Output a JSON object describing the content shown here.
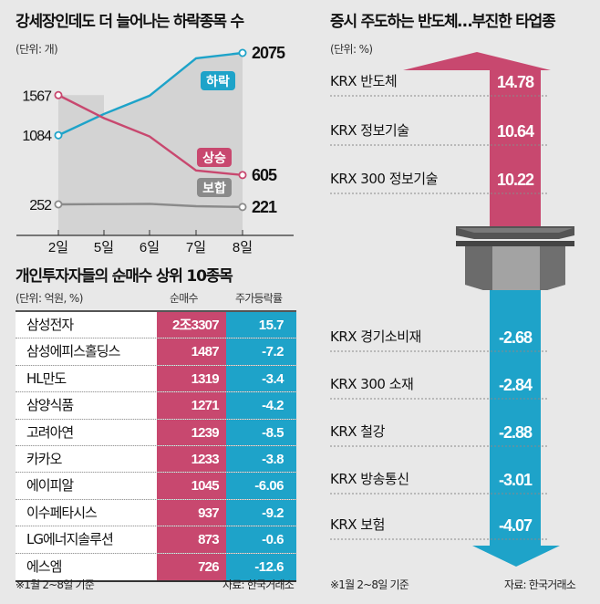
{
  "colors": {
    "background": "#e8e8e8",
    "decline": "#1ea3c9",
    "advance": "#c8486f",
    "unchanged": "#8a8a8a"
  },
  "left_top": {
    "title": "강세장인데도 더 늘어나는 하락종목 수",
    "unit": "(단위: 개)"
  },
  "table": {
    "title": "개인투자자들의 순매수 상위 10종목",
    "unit": "(단위: 억원, %)",
    "headers": [
      "순매수",
      "주가등락률"
    ],
    "rows": [
      {
        "name": "삼성전자",
        "net_buy": "2조3307",
        "change": "15.7"
      },
      {
        "name": "삼성에피스홀딩스",
        "net_buy": "1487",
        "change": "-7.2"
      },
      {
        "name": "HL만도",
        "net_buy": "1319",
        "change": "-3.4"
      },
      {
        "name": "삼양식품",
        "net_buy": "1271",
        "change": "-4.2"
      },
      {
        "name": "고려아연",
        "net_buy": "1239",
        "change": "-8.5"
      },
      {
        "name": "카카오",
        "net_buy": "1233",
        "change": "-3.8"
      },
      {
        "name": "에이피알",
        "net_buy": "1045",
        "change": "-6.06"
      },
      {
        "name": "이수페타시스",
        "net_buy": "937",
        "change": "-9.2"
      },
      {
        "name": "LG에너지솔루션",
        "net_buy": "873",
        "change": "-0.6"
      },
      {
        "name": "에스엠",
        "net_buy": "726",
        "change": "-12.6"
      }
    ],
    "footnote": "※1월 2~8일 기준",
    "source": "자료: 한국거래소"
  },
  "right": {
    "title": "증시 주도하는 반도체…부진한 타업종",
    "unit": "(단위: %)",
    "footnote": "※1월 2~8일 기준",
    "source": "자료: 한국거래소"
  },
  "chart_data": [
    {
      "type": "line",
      "title": "강세장인데도 더 늘어나는 하락종목 수",
      "subtitle": "(단위: 개)",
      "x": [
        "2일",
        "5일",
        "6일",
        "7일",
        "8일"
      ],
      "xlabel": "",
      "ylabel": "",
      "ylim": [
        0,
        2200
      ],
      "grid": false,
      "series": [
        {
          "name": "하락",
          "values": [
            1084,
            1340,
            1560,
            2010,
            2075
          ],
          "color": "#1ea3c9",
          "labeled_endpoints": [
            "1084",
            "2075"
          ]
        },
        {
          "name": "상승",
          "values": [
            1567,
            1290,
            1070,
            660,
            605
          ],
          "color": "#c8486f",
          "labeled_endpoints": [
            "1567",
            "605"
          ]
        },
        {
          "name": "보합",
          "values": [
            252,
            255,
            258,
            230,
            221
          ],
          "color": "#8a8a8a",
          "labeled_endpoints": [
            "252",
            "221"
          ]
        }
      ]
    },
    {
      "type": "bar",
      "title": "증시 주도하는 반도체…부진한 타업종",
      "subtitle": "(단위: %)",
      "categories": [
        "KRX 반도체",
        "KRX 정보기술",
        "KRX 300 정보기술",
        "KRX 경기소비재",
        "KRX 300 소재",
        "KRX 철강",
        "KRX 방송통신",
        "KRX 보험"
      ],
      "values": [
        14.78,
        10.64,
        10.22,
        -2.68,
        -2.84,
        -2.88,
        -3.01,
        -4.07
      ],
      "labels": [
        "14.78",
        "10.64",
        "10.22",
        "-2.68",
        "-2.84",
        "-2.88",
        "-3.01",
        "-4.07"
      ],
      "xlabel": "",
      "ylabel": ""
    }
  ]
}
